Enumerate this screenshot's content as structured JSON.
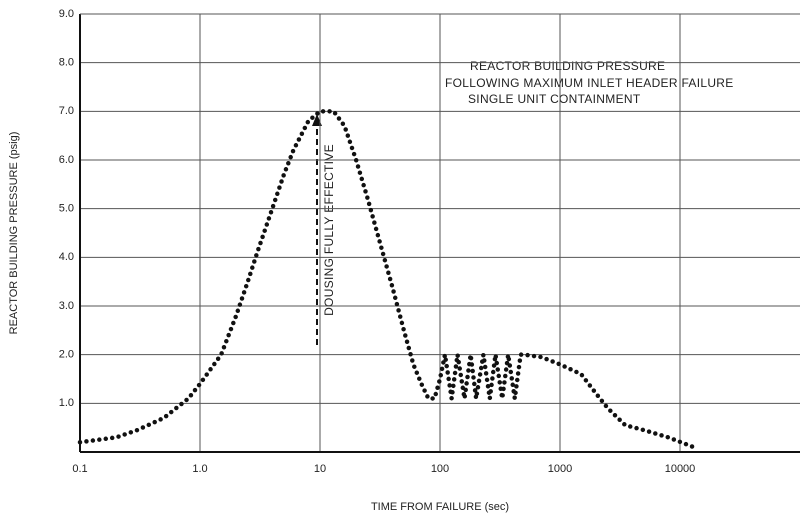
{
  "chart_data": {
    "type": "line",
    "title": [
      "REACTOR BUILDING PRESSURE",
      "FOLLOWING MAXIMUM INLET HEADER FAILURE",
      "SINGLE UNIT CONTAINMENT"
    ],
    "xlabel": "TIME FROM FAILURE (sec)",
    "ylabel": "REACTOR BUILDING PRESSURE (psig)",
    "annotation": "DOUSING FULLY EFFECTIVE",
    "xscale": "log",
    "grid": true,
    "xlim": [
      0.1,
      100000
    ],
    "ylim": [
      0,
      9
    ],
    "xticks": [
      0.1,
      {
        "value": 1,
        "label": "1.0"
      },
      10,
      100,
      1000,
      10000
    ],
    "yticks": [
      {
        "value": 1,
        "label": "1.0"
      },
      {
        "value": 2,
        "label": "2.0"
      },
      {
        "value": 3,
        "label": "3.0"
      },
      {
        "value": 4,
        "label": "4.0"
      },
      {
        "value": 5,
        "label": "5.0"
      },
      {
        "value": 6,
        "label": "6.0"
      },
      {
        "value": 7,
        "label": "7.0"
      },
      {
        "value": 8,
        "label": "8.0"
      },
      {
        "value": 9,
        "label": "9.0"
      }
    ],
    "series": [
      {
        "color": "#111",
        "x": [
          0.1,
          0.2,
          0.3,
          0.5,
          0.8,
          1.0,
          1.5,
          2,
          2.5,
          3,
          4,
          5,
          6,
          8,
          10,
          13,
          16,
          20,
          25,
          30,
          40,
          50,
          60,
          70,
          80,
          90,
          100,
          110,
          125,
          140,
          160,
          180,
          200,
          230,
          260,
          290,
          330,
          370,
          420,
          470,
          500,
          700,
          1000,
          1500,
          2000,
          2500,
          3500,
          5000,
          8000,
          13000
        ],
        "values": [
          0.2,
          0.3,
          0.45,
          0.7,
          1.1,
          1.4,
          2.0,
          2.8,
          3.5,
          4.1,
          5.0,
          5.7,
          6.2,
          6.8,
          7.0,
          7.0,
          6.7,
          6.0,
          5.2,
          4.5,
          3.4,
          2.5,
          1.8,
          1.4,
          1.1,
          1.1,
          1.5,
          2.0,
          1.1,
          2.0,
          1.1,
          2.0,
          1.1,
          2.0,
          1.1,
          2.0,
          1.1,
          2.0,
          1.1,
          2.0,
          2.0,
          1.95,
          1.8,
          1.6,
          1.2,
          0.9,
          0.55,
          0.45,
          0.3,
          0.1
        ]
      }
    ]
  }
}
